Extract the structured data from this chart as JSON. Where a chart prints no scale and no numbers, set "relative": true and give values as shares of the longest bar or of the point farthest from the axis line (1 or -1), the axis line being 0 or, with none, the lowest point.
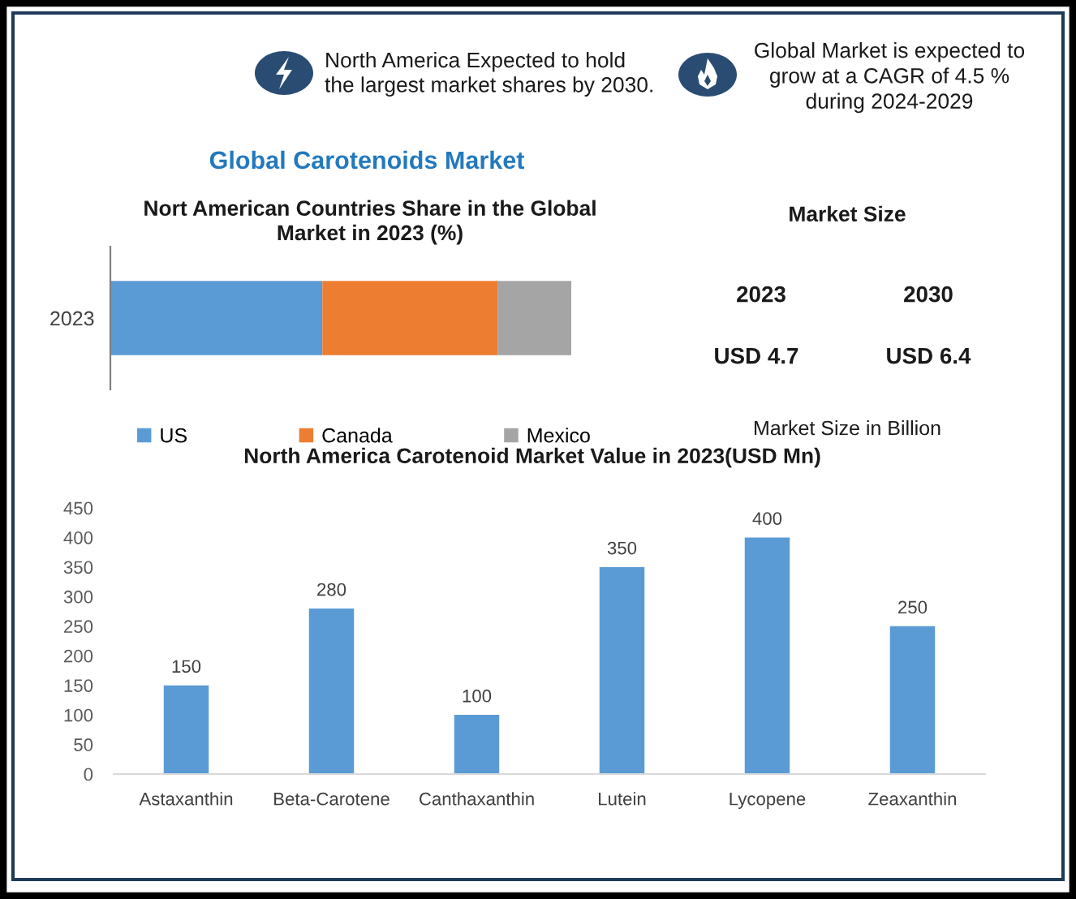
{
  "chart_data": [
    {
      "type": "other",
      "title": "Global Carotenoids Market",
      "annotations": [
        "North America Expected to hold the largest market shares by 2030.",
        "Global Market is expected to grow at a CAGR of 4.5 % during 2024-2029"
      ]
    },
    {
      "type": "bar",
      "title": "Nort American Countries Share in the Global Market in 2023 (%)",
      "orientation": "horizontal",
      "stacked": true,
      "relative": true,
      "categories": [
        "2023"
      ],
      "series": [
        {
          "name": "US",
          "color": "#5b9bd5",
          "values": [
            0.46
          ]
        },
        {
          "name": "Canada",
          "color": "#ed7d31",
          "values": [
            0.38
          ]
        },
        {
          "name": "Mexico",
          "color": "#a5a5a5",
          "values": [
            0.16
          ]
        }
      ],
      "legend": "bottom"
    },
    {
      "type": "other",
      "title": "Market Size",
      "annotations": [
        "2023",
        "2030",
        "USD 4.7",
        "USD 6.4",
        "Market Size in Billion"
      ]
    },
    {
      "type": "bar",
      "title": "North America Carotenoid Market Value in 2023(USD Mn)",
      "categories": [
        "Astaxanthin",
        "Beta-Carotene",
        "Canthaxanthin",
        "Lutein",
        "Lycopene",
        "Zeaxanthin"
      ],
      "values": [
        150,
        280,
        100,
        350,
        400,
        250
      ],
      "color": "#5b9bd5",
      "ylim": [
        0,
        450
      ],
      "yticks": [
        0,
        50,
        100,
        150,
        200,
        250,
        300,
        350,
        400,
        450
      ],
      "data_labels": true
    }
  ]
}
